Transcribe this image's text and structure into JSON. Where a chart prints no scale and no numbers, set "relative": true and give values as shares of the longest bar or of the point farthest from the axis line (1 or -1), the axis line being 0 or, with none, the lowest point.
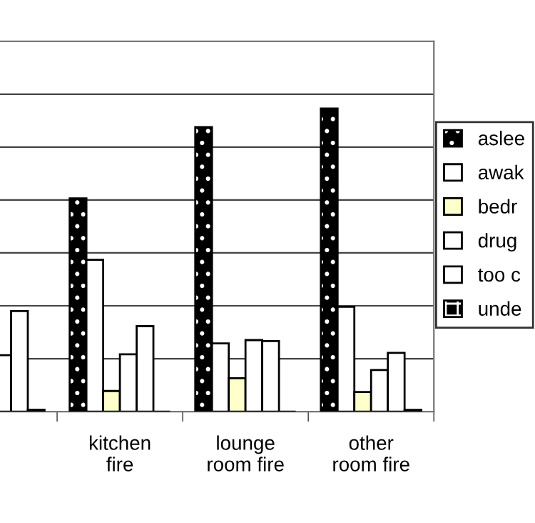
{
  "chart_data": {
    "type": "bar",
    "relative": true,
    "grid": "y",
    "legend": "right",
    "categories": [
      null,
      "kitchen\nfire",
      "lounge\nroom fire",
      "other\nroom fire"
    ],
    "series": [
      {
        "name": "aslee",
        "color": "#000000",
        "values": [
          null,
          0.704,
          0.939,
          1
        ]
      },
      {
        "name": "awak",
        "color": "#ffffff",
        "values": [
          null,
          0.501,
          0.225,
          0.346
        ]
      },
      {
        "name": "bedr",
        "color": "#ffffcc",
        "values": [
          null,
          0.068,
          0.11,
          0.065
        ]
      },
      {
        "name": "drug",
        "color": "#ffffff",
        "values": [
          0.186,
          0.189,
          0.236,
          0.137
        ]
      },
      {
        "name": "too c",
        "color": "#ffffff",
        "values": [
          0.332,
          0.282,
          0.233,
          0.194
        ]
      },
      {
        "name": "unde",
        "color": "#000000",
        "values": [
          0.006,
          0,
          0,
          0.006
        ]
      }
    ]
  }
}
